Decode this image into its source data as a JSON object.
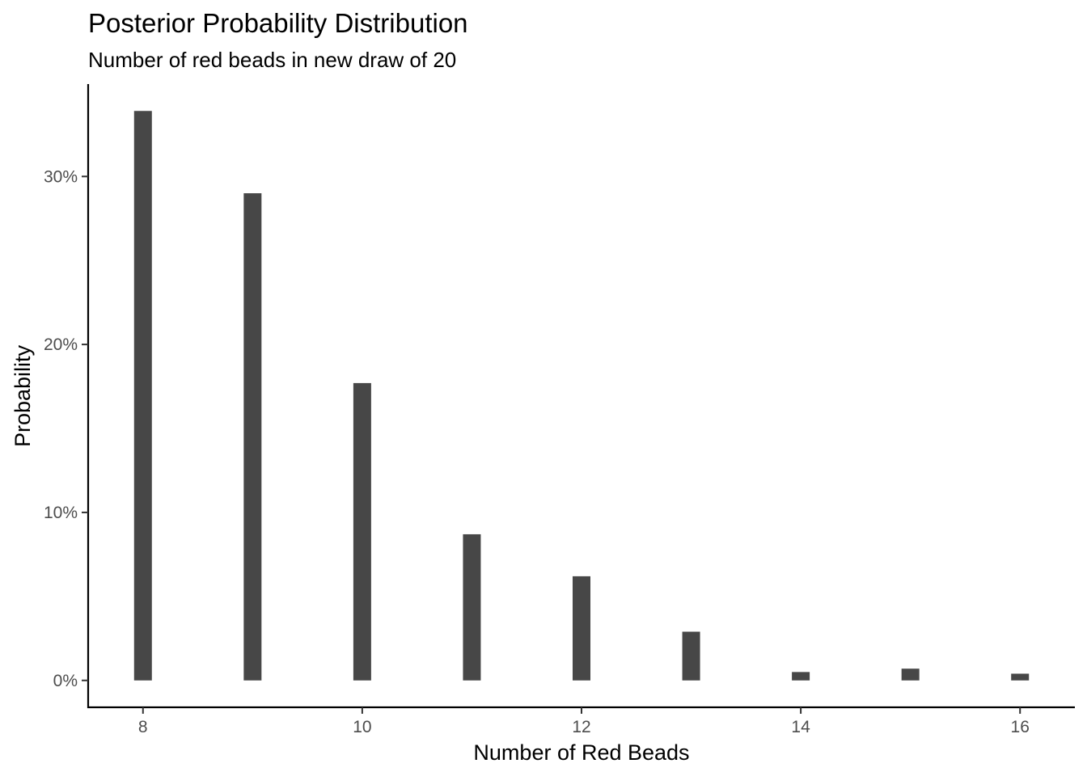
{
  "chart_data": {
    "type": "bar",
    "title": "Posterior Probability Distribution",
    "subtitle": "Number of red beads in new draw of 20",
    "xlabel": "Number of Red Beads",
    "ylabel": "Probability",
    "x": [
      8,
      9,
      10,
      11,
      12,
      13,
      14,
      15,
      16
    ],
    "values": [
      0.339,
      0.29,
      0.177,
      0.087,
      0.062,
      0.029,
      0.005,
      0.007,
      0.004
    ],
    "xlim": [
      7.5,
      16.5
    ],
    "ylim": [
      -0.016,
      0.355
    ],
    "x_ticks": [
      8,
      10,
      12,
      14,
      16
    ],
    "x_tick_labels": [
      "8",
      "10",
      "12",
      "14",
      "16"
    ],
    "y_ticks": [
      0,
      0.1,
      0.2,
      0.3
    ],
    "y_tick_labels": [
      "0%",
      "10%",
      "20%",
      "30%"
    ],
    "bar_color": "#474747",
    "grid": false,
    "legend": "none"
  }
}
